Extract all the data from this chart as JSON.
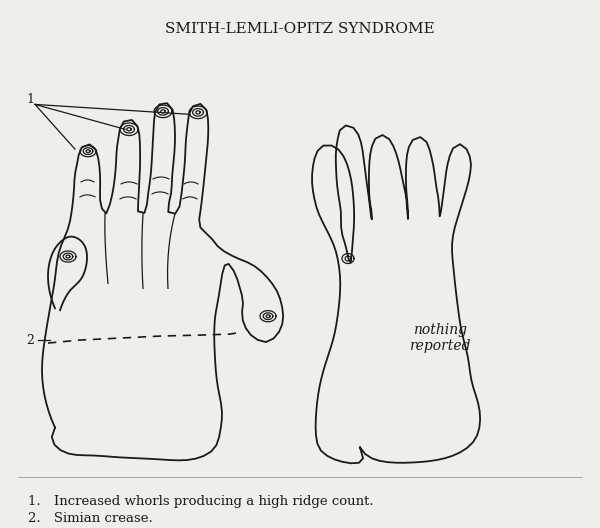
{
  "title": "SMITH-LEMLI-OPITZ SYNDROME",
  "title_fontsize": 11,
  "background_color": "#f0eeea",
  "line_color": "#1a1a1a",
  "text_color": "#1a1a1a",
  "annotation1": "1. Increased whorls producing a high ridge count.",
  "annotation2": "2. Simian crease.",
  "nothing_reported": "nothing\nreported",
  "label1": "1",
  "label2": "2"
}
